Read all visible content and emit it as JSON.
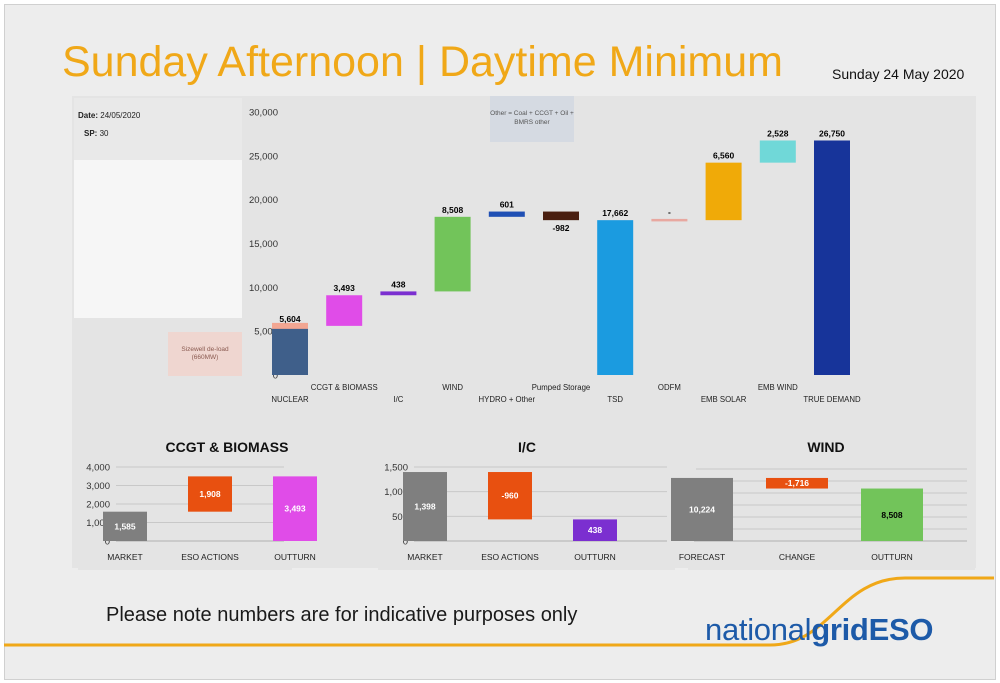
{
  "header": {
    "title": "Sunday Afternoon | Daytime Minimum",
    "date": "Sunday 24 May 2020"
  },
  "info": {
    "date_label": "Date:",
    "date_value": "24/05/2020",
    "sp_label": "SP:",
    "sp_value": "30"
  },
  "notes": {
    "sizewell": "Sizewell de-load (660MW)",
    "other": "Other = Coal + CCGT + Oil + BMRS other"
  },
  "footer": {
    "disclaimer": "Please note numbers are for indicative purposes only",
    "logo_light": "national",
    "logo_bold": "grid",
    "logo_eso": "ESO"
  },
  "colors": {
    "title": "#f0a818",
    "accent_line": "#f0a818",
    "logo": "#1d5aa8"
  },
  "chart_data": [
    {
      "type": "bar",
      "subtype": "waterfall",
      "title": "",
      "ylim": [
        0,
        30000
      ],
      "yticks": [
        "0",
        "5,000",
        "10,000",
        "15,000",
        "20,000",
        "25,000",
        "30,000"
      ],
      "gridlines": false,
      "categories": [
        "NUCLEAR",
        "CCGT & BIOMASS",
        "I/C",
        "WIND",
        "HYDRO + Other",
        "Pumped Storage",
        "TSD",
        "ODFM",
        "EMB SOLAR",
        "EMB WIND",
        "TRUE DEMAND"
      ],
      "bars": [
        {
          "label": "5,604",
          "start": 0,
          "end": 5604,
          "color": "#3f5f8a",
          "top_accent": "#f2a692"
        },
        {
          "label": "3,493",
          "start": 5604,
          "end": 9097,
          "color": "#e04ce8"
        },
        {
          "label": "438",
          "start": 9097,
          "end": 9535,
          "color": "#7b2fd0"
        },
        {
          "label": "8,508",
          "start": 9535,
          "end": 18043,
          "color": "#72c45a"
        },
        {
          "label": "601",
          "start": 18043,
          "end": 18644,
          "color": "#1f4fb4"
        },
        {
          "label": "-982",
          "start": 18644,
          "end": 17662,
          "color": "#4a1f10"
        },
        {
          "label": "17,662",
          "start": 0,
          "end": 17662,
          "color": "#1b9be0"
        },
        {
          "label": "-",
          "start": 17662,
          "end": 17662,
          "color": "#e8a8a0"
        },
        {
          "label": "6,560",
          "start": 17662,
          "end": 24222,
          "color": "#f0aa08"
        },
        {
          "label": "2,528",
          "start": 24222,
          "end": 26750,
          "color": "#70d8d8"
        },
        {
          "label": "26,750",
          "start": 0,
          "end": 26750,
          "color": "#17349a"
        }
      ]
    },
    {
      "type": "bar",
      "subtype": "waterfall",
      "title": "CCGT & BIOMASS",
      "ylim": [
        0,
        4000
      ],
      "yticks": [
        "0",
        "1,000",
        "2,000",
        "3,000",
        "4,000"
      ],
      "gridlines": true,
      "categories": [
        "MARKET",
        "ESO ACTIONS",
        "OUTTURN"
      ],
      "bars": [
        {
          "label": "1,585",
          "start": 0,
          "end": 1585,
          "color": "#7f7f7f"
        },
        {
          "label": "1,908",
          "start": 1585,
          "end": 3493,
          "color": "#e85010"
        },
        {
          "label": "3,493",
          "start": 0,
          "end": 3493,
          "color": "#e04ce8"
        }
      ]
    },
    {
      "type": "bar",
      "subtype": "waterfall",
      "title": "I/C",
      "ylim": [
        0,
        1500
      ],
      "yticks": [
        "0",
        "500",
        "1,000",
        "1,500"
      ],
      "gridlines": true,
      "categories": [
        "MARKET",
        "ESO ACTIONS",
        "OUTTURN"
      ],
      "bars": [
        {
          "label": "1,398",
          "start": 0,
          "end": 1398,
          "color": "#7f7f7f"
        },
        {
          "label": "-960",
          "start": 1398,
          "end": 438,
          "color": "#e85010"
        },
        {
          "label": "438",
          "start": 0,
          "end": 438,
          "color": "#7b2fd0"
        }
      ]
    },
    {
      "type": "bar",
      "subtype": "waterfall",
      "title": "WIND",
      "ylim": [
        0,
        12000
      ],
      "yticks": [],
      "gridlines": true,
      "categories": [
        "FORECAST",
        "CHANGE",
        "OUTTURN"
      ],
      "bars": [
        {
          "label": "10,224",
          "start": 0,
          "end": 10224,
          "color": "#7f7f7f"
        },
        {
          "label": "-1,716",
          "start": 10224,
          "end": 8508,
          "color": "#e85010"
        },
        {
          "label": "8,508",
          "start": 0,
          "end": 8508,
          "color": "#72c45a"
        }
      ]
    }
  ]
}
